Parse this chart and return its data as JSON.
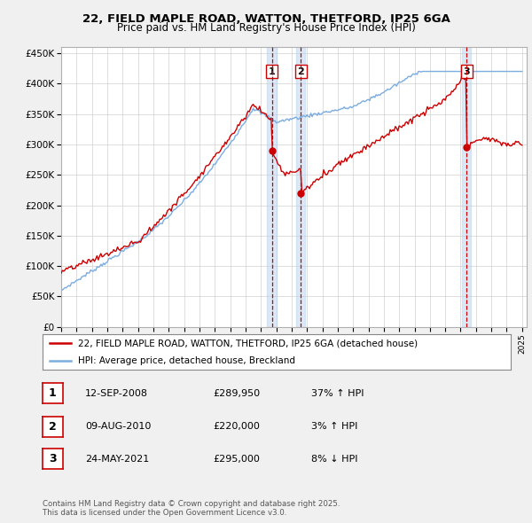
{
  "title_line1": "22, FIELD MAPLE ROAD, WATTON, THETFORD, IP25 6GA",
  "title_line2": "Price paid vs. HM Land Registry's House Price Index (HPI)",
  "ylim": [
    0,
    460000
  ],
  "yticks": [
    0,
    50000,
    100000,
    150000,
    200000,
    250000,
    300000,
    350000,
    400000,
    450000
  ],
  "ytick_labels": [
    "£0",
    "£50K",
    "£100K",
    "£150K",
    "£200K",
    "£250K",
    "£300K",
    "£350K",
    "£400K",
    "£450K"
  ],
  "year_start": 1995,
  "year_end": 2025,
  "red_color": "#cc0000",
  "blue_color": "#7aade0",
  "blue_fill": "#b8d4f0",
  "sale_dates_num": [
    2008.71,
    2010.6,
    2021.39
  ],
  "sale_prices": [
    289950,
    220000,
    295000
  ],
  "sale_labels": [
    "1",
    "2",
    "3"
  ],
  "legend_entries": [
    "22, FIELD MAPLE ROAD, WATTON, THETFORD, IP25 6GA (detached house)",
    "HPI: Average price, detached house, Breckland"
  ],
  "table_rows": [
    [
      "1",
      "12-SEP-2008",
      "£289,950",
      "37% ↑ HPI"
    ],
    [
      "2",
      "09-AUG-2010",
      "£220,000",
      "3% ↑ HPI"
    ],
    [
      "3",
      "24-MAY-2021",
      "£295,000",
      "8% ↓ HPI"
    ]
  ],
  "footer": "Contains HM Land Registry data © Crown copyright and database right 2025.\nThis data is licensed under the Open Government Licence v3.0.",
  "fig_bg": "#f0f0f0",
  "plot_bg": "#ffffff"
}
